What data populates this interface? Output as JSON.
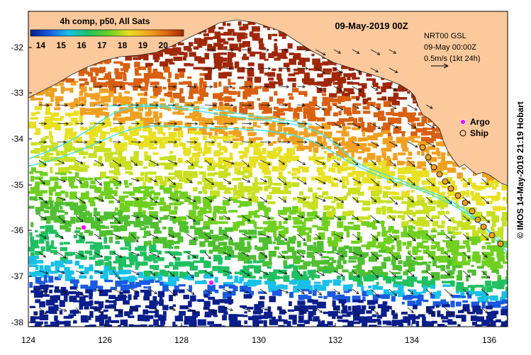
{
  "map": {
    "title": "09-May-2019 00Z",
    "colorbar": {
      "label": "4h comp, p50, All Sats",
      "ticks": [
        "14",
        "15",
        "16",
        "17",
        "18",
        "19",
        "20"
      ],
      "min": 13.5,
      "max": 21
    },
    "info": {
      "line1": "NRT00 GSL",
      "line2": "09-May 00:00Z",
      "line3": "0.5m/s (1kt 24h)"
    },
    "legend": {
      "argo_label": "Argo",
      "ship_label": "Ship",
      "argo_color": "#ff00ff",
      "ship_color": "#f0a020"
    },
    "credit": "© IMOS 14-May-2019 21:19 Hobart",
    "x_ticks": [
      "124",
      "126",
      "128",
      "130",
      "132",
      "134",
      "136"
    ],
    "y_ticks": [
      "-32",
      "-33",
      "-34",
      "-35",
      "-36",
      "-37",
      "-38"
    ],
    "land_color": "#fcc99c",
    "contour_color": "#33e6ee"
  }
}
